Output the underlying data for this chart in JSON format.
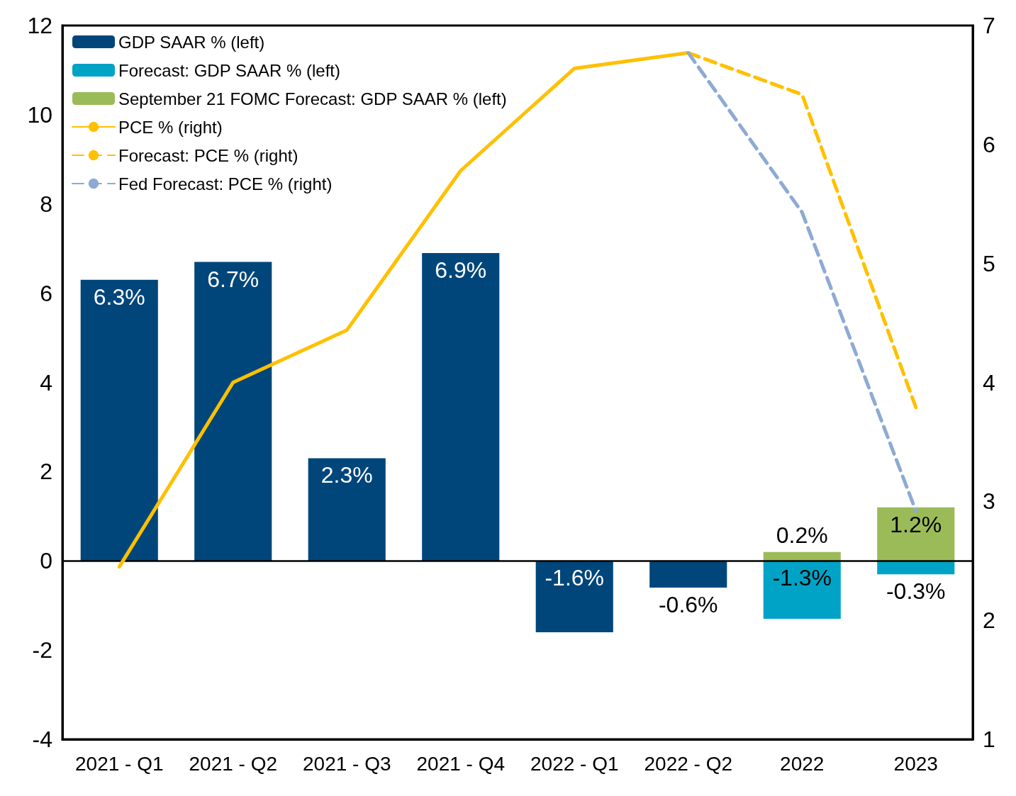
{
  "chart_data": {
    "type": "bar",
    "categories": [
      "2021 - Q1",
      "2021 - Q2",
      "2021 - Q3",
      "2021 - Q4",
      "2022 - Q1",
      "2022 - Q2",
      "2022",
      "2023"
    ],
    "stacked": true,
    "series": [
      {
        "name": "GDP SAAR % (left)",
        "color": "#00467a",
        "values": [
          6.3,
          6.7,
          2.3,
          6.9,
          -1.6,
          -0.6,
          null,
          null
        ],
        "value_labels": [
          "6.3%",
          "6.7%",
          "2.3%",
          "6.9%",
          "-1.6%",
          "-0.6%",
          null,
          null
        ]
      },
      {
        "name": "Forecast: GDP SAAR % (left)",
        "color": "#00a3c6",
        "values": [
          null,
          null,
          null,
          null,
          null,
          null,
          -1.3,
          -0.3
        ],
        "value_labels": [
          null,
          null,
          null,
          null,
          null,
          null,
          "-1.3%",
          "-0.3%"
        ]
      },
      {
        "name": "September 21 FOMC Forecast: GDP SAAR % (left)",
        "color": "#9bbb59",
        "values": [
          null,
          null,
          null,
          null,
          null,
          null,
          0.2,
          1.2
        ],
        "value_labels": [
          null,
          null,
          null,
          null,
          null,
          null,
          "0.2%",
          "1.2%"
        ]
      },
      {
        "name": "PCE % (right)",
        "type": "line",
        "axis": "y2",
        "color": "#ffc000",
        "line_style": "solid",
        "values": [
          2.45,
          4.0,
          4.44,
          5.78,
          6.64,
          6.77,
          null,
          null
        ]
      },
      {
        "name": "Forecast: PCE % (right)",
        "type": "line",
        "axis": "y2",
        "color": "#ffc000",
        "line_style": "dashed",
        "values": [
          null,
          null,
          null,
          null,
          null,
          6.77,
          6.42,
          3.79
        ]
      },
      {
        "name": "Fed Forecast: PCE % (right)",
        "type": "line",
        "axis": "y2",
        "color": "#8eaad4",
        "line_style": "dashed",
        "values": [
          null,
          null,
          null,
          null,
          null,
          6.77,
          5.43,
          2.92
        ]
      }
    ],
    "ylim": [
      -4,
      12
    ],
    "yticks": [
      -4,
      -2,
      0,
      2,
      4,
      6,
      8,
      10,
      12
    ],
    "y2lim": [
      1,
      7
    ],
    "y2ticks": [
      1,
      2,
      3,
      4,
      5,
      6,
      7
    ],
    "ref_lines": [
      {
        "axis": "y",
        "value": 0,
        "color": "#000000",
        "line_style": "solid"
      }
    ],
    "marker": "none",
    "grid": false,
    "legend": "top left"
  }
}
